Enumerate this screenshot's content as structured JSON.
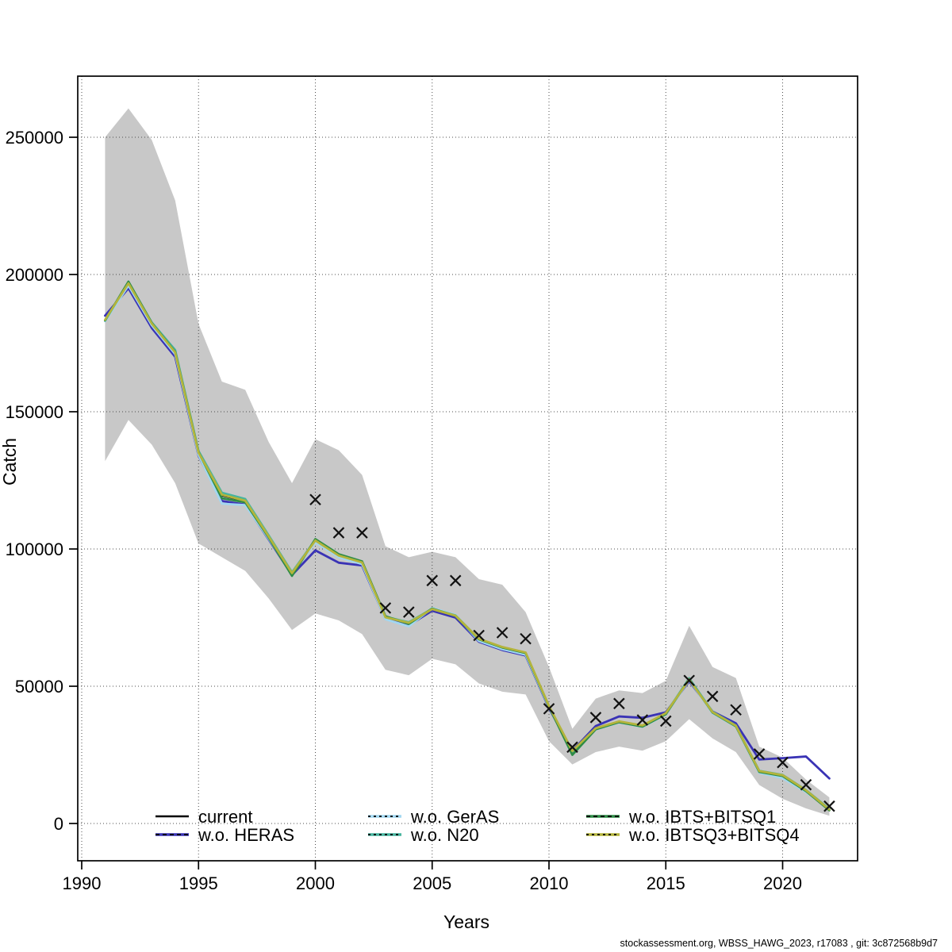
{
  "page": {
    "background": "#ffffff"
  },
  "footer": {
    "text": "stockassessment.org, WBSS_HAWG_2023, r17083 , git: 3c872568b9d7"
  },
  "chart_data": {
    "type": "line",
    "title": "",
    "xlabel": "Years",
    "ylabel": "Catch",
    "xlim": [
      1989.8,
      2023.2
    ],
    "ylim": [
      -13500,
      272000
    ],
    "x_ticks": [
      1990,
      1995,
      2000,
      2005,
      2010,
      2015,
      2020
    ],
    "y_ticks": [
      0,
      50000,
      100000,
      150000,
      200000,
      250000
    ],
    "grid": "dotted",
    "legend_position": "bottom-inside",
    "band_color": "#c8c8c8",
    "grid_color": "#4d4d4d",
    "axis_color": "#000000",
    "marker_color": "#111111",
    "years": [
      1991,
      1992,
      1993,
      1994,
      1995,
      1996,
      1997,
      1998,
      1999,
      2000,
      2001,
      2002,
      2003,
      2004,
      2005,
      2006,
      2007,
      2008,
      2009,
      2010,
      2011,
      2012,
      2013,
      2014,
      2015,
      2016,
      2017,
      2018,
      2019,
      2020,
      2021,
      2022
    ],
    "band": {
      "upper": [
        250000,
        260500,
        249000,
        227000,
        182000,
        161000,
        158000,
        139000,
        124000,
        140000,
        136000,
        127000,
        101000,
        97000,
        99000,
        97000,
        89000,
        87000,
        77000,
        57000,
        34500,
        45500,
        48500,
        47500,
        52000,
        72000,
        57000,
        53000,
        28000,
        24000,
        16000,
        9500
      ],
      "lower": [
        132000,
        147000,
        138000,
        124000,
        102000,
        97000,
        92000,
        82000,
        70500,
        76500,
        74000,
        69000,
        56000,
        54000,
        60000,
        58000,
        51000,
        48000,
        47000,
        30000,
        21500,
        26000,
        28000,
        26500,
        30000,
        38000,
        31000,
        26000,
        14000,
        9000,
        5500,
        2800
      ]
    },
    "series": [
      {
        "name": "current",
        "color": "#000000",
        "dash": "solid",
        "width": 2.2,
        "values": [
          183500,
          196500,
          182000,
          171500,
          135000,
          119500,
          117500,
          104500,
          91000,
          103000,
          97500,
          95000,
          75000,
          73000,
          78000,
          75500,
          67000,
          64000,
          62000,
          42500,
          26000,
          34500,
          37000,
          35500,
          40000,
          52500,
          40500,
          35500,
          19000,
          17500,
          12000,
          5000
        ]
      },
      {
        "name": "w.o. HERAS",
        "color": "#3a33b5",
        "dash": "dashed",
        "width": 2.8,
        "values": [
          185000,
          195000,
          180500,
          170000,
          134000,
          117500,
          116200,
          103500,
          90500,
          99500,
          95000,
          94000,
          74500,
          72200,
          77500,
          75000,
          66200,
          63200,
          61200,
          42000,
          26500,
          35500,
          39000,
          38500,
          40500,
          51800,
          40800,
          36500,
          23300,
          23800,
          24400,
          16400
        ]
      },
      {
        "name": "w.o. GerAS",
        "color": "#a2d7f0",
        "dash": "dotted",
        "width": 2.8,
        "values": [
          183000,
          196000,
          181500,
          171000,
          134300,
          116500,
          116000,
          103800,
          90800,
          102500,
          97000,
          94500,
          74400,
          71800,
          78500,
          76000,
          66500,
          63500,
          61500,
          42300,
          26200,
          34200,
          36800,
          35200,
          39700,
          52300,
          40200,
          35300,
          18500,
          16500,
          11500,
          5200
        ]
      },
      {
        "name": "w.o. N20",
        "color": "#46b49e",
        "dash": "dotted",
        "width": 2.8,
        "values": [
          183200,
          197200,
          182500,
          172500,
          135700,
          120500,
          118200,
          105000,
          91500,
          103300,
          97900,
          95300,
          75300,
          73300,
          78200,
          75800,
          67200,
          64200,
          62200,
          42700,
          26300,
          34600,
          37100,
          35600,
          40100,
          52900,
          40700,
          35700,
          19200,
          17700,
          12200,
          5300
        ]
      },
      {
        "name": "w.o. IBTS+BITSQ1",
        "color": "#2e8c46",
        "dash": "dashed",
        "width": 2.8,
        "values": [
          183300,
          197400,
          182300,
          171800,
          135300,
          118500,
          117000,
          104200,
          90200,
          103600,
          98100,
          95500,
          75500,
          72700,
          78300,
          75600,
          67100,
          64100,
          62100,
          42600,
          25000,
          34300,
          36900,
          35300,
          39800,
          52600,
          40400,
          35400,
          18800,
          17300,
          11800,
          4800
        ]
      },
      {
        "name": "w.o. IBTSQ3+BITSQ4",
        "color": "#b4b43c",
        "dash": "dotted",
        "width": 2.8,
        "values": [
          183500,
          196800,
          182100,
          171600,
          135100,
          119800,
          117600,
          104600,
          91200,
          103100,
          97600,
          95100,
          75100,
          73100,
          78100,
          75700,
          67300,
          64300,
          62300,
          42800,
          26400,
          34700,
          37200,
          35700,
          40200,
          52400,
          40600,
          35600,
          19100,
          17600,
          12100,
          5100
        ]
      }
    ],
    "observations": {
      "marker": "x",
      "x": [
        2000,
        2001,
        2002,
        2003,
        2004,
        2005,
        2006,
        2007,
        2008,
        2009,
        2010,
        2011,
        2012,
        2013,
        2014,
        2015,
        2016,
        2017,
        2018,
        2019,
        2020,
        2021,
        2022
      ],
      "y": [
        118000,
        105900,
        105900,
        78500,
        77000,
        88500,
        88500,
        68500,
        69500,
        67300,
        41800,
        27800,
        38600,
        43700,
        37700,
        37300,
        52100,
        46300,
        41400,
        25300,
        22200,
        14100,
        6300
      ]
    },
    "legend": {
      "items": [
        {
          "label": "current",
          "color": "#000000",
          "dash": "solid"
        },
        {
          "label": "w.o. HERAS",
          "color": "#3a33b5",
          "dash": "dashed"
        },
        {
          "label": "w.o. GerAS",
          "color": "#a2d7f0",
          "dash": "dotted"
        },
        {
          "label": "w.o. N20",
          "color": "#46b49e",
          "dash": "dotted"
        },
        {
          "label": "w.o. IBTS+BITSQ1",
          "color": "#2e8c46",
          "dash": "dashed"
        },
        {
          "label": "w.o. IBTSQ3+BITSQ4",
          "color": "#b4b43c",
          "dash": "dotted"
        }
      ]
    }
  }
}
